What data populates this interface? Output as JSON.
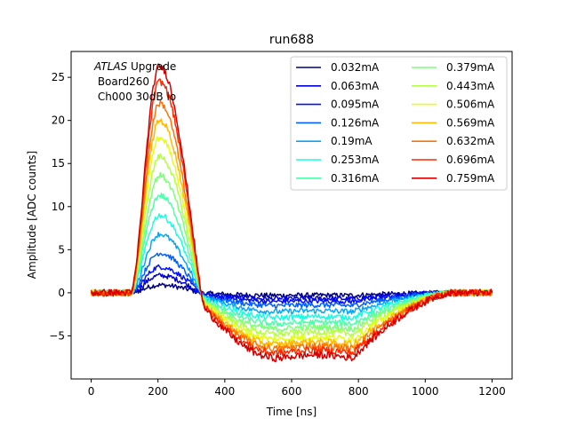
{
  "chart_data": {
    "type": "line",
    "title": "run688",
    "xlabel": "Time [ns]",
    "ylabel": "Amplitude [ADC counts]",
    "xlim": [
      -60,
      1260
    ],
    "ylim": [
      -10,
      28
    ],
    "xticks": [
      0,
      200,
      400,
      600,
      800,
      1000,
      1200
    ],
    "yticks": [
      -5,
      0,
      5,
      10,
      15,
      20,
      25
    ],
    "grid": false,
    "legend_placement": "top-right",
    "legend_columns": 2,
    "annotation": {
      "line1_italic": "ATLAS",
      "line1_rest": " Upgrade",
      "line2": " Board260",
      "line3": " Ch000 30dB lo"
    },
    "series": [
      {
        "name": "0.032mA",
        "color": "#00007f",
        "peak": 0.9,
        "undershoot": -0.3
      },
      {
        "name": "0.063mA",
        "color": "#0000d6",
        "peak": 2.0,
        "undershoot": -0.7
      },
      {
        "name": "0.095mA",
        "color": "#0010ff",
        "peak": 3.0,
        "undershoot": -1.0
      },
      {
        "name": "0.126mA",
        "color": "#0060ff",
        "peak": 4.6,
        "undershoot": -1.5
      },
      {
        "name": "0.19mA",
        "color": "#00a8ff",
        "peak": 6.8,
        "undershoot": -2.2
      },
      {
        "name": "0.253mA",
        "color": "#16ffe1",
        "peak": 9.0,
        "undershoot": -2.9
      },
      {
        "name": "0.316mA",
        "color": "#4dffaa",
        "peak": 11.3,
        "undershoot": -3.6
      },
      {
        "name": "0.379mA",
        "color": "#7dff7a",
        "peak": 13.6,
        "undershoot": -4.2
      },
      {
        "name": "0.443mA",
        "color": "#b4ff43",
        "peak": 15.8,
        "undershoot": -4.8
      },
      {
        "name": "0.506mA",
        "color": "#e4ff13",
        "peak": 18.0,
        "undershoot": -5.4
      },
      {
        "name": "0.569mA",
        "color": "#ffb900",
        "peak": 20.0,
        "undershoot": -6.0
      },
      {
        "name": "0.632mA",
        "color": "#ff7300",
        "peak": 22.0,
        "undershoot": -6.5
      },
      {
        "name": "0.696mA",
        "color": "#ff2a00",
        "peak": 24.5,
        "undershoot": -7.0
      },
      {
        "name": "0.759mA",
        "color": "#d40000",
        "peak": 26.3,
        "undershoot": -7.6
      }
    ]
  }
}
